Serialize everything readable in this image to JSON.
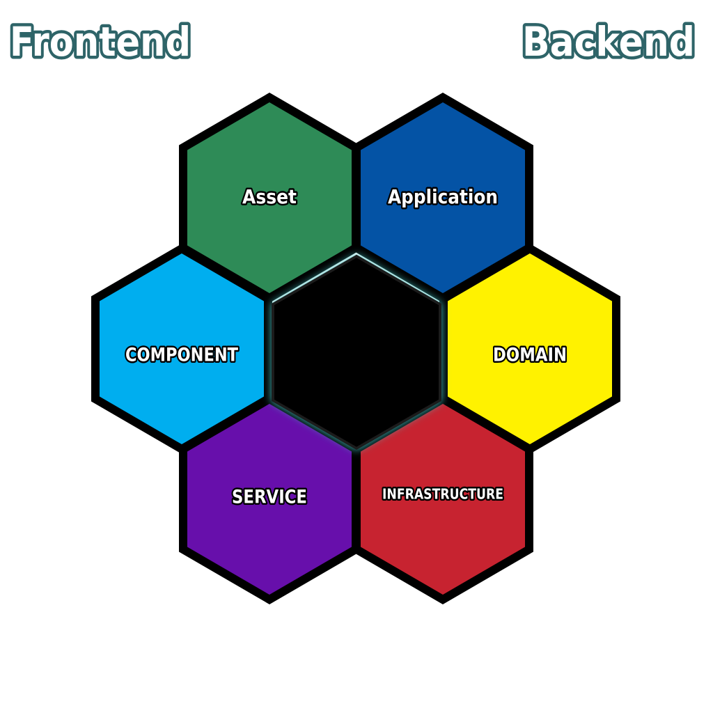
{
  "titles": {
    "left": "Frontend",
    "right": "Backend"
  },
  "hexagons": [
    {
      "id": "asset",
      "label": "Asset",
      "color": "#2e8b57"
    },
    {
      "id": "application",
      "label": "Application",
      "color": "#0453a5"
    },
    {
      "id": "component",
      "label": "COMPONENT",
      "color": "#00aeef"
    },
    {
      "id": "core",
      "label": "",
      "color": "#000000",
      "glow": "#3fbfbf"
    },
    {
      "id": "domain",
      "label": "DOMAIN",
      "color": "#fff200"
    },
    {
      "id": "service",
      "label": "SERVICE",
      "color": "#670fab"
    },
    {
      "id": "infrastructure",
      "label": "INFRASTRUCTURE",
      "color": "#c72330"
    }
  ]
}
